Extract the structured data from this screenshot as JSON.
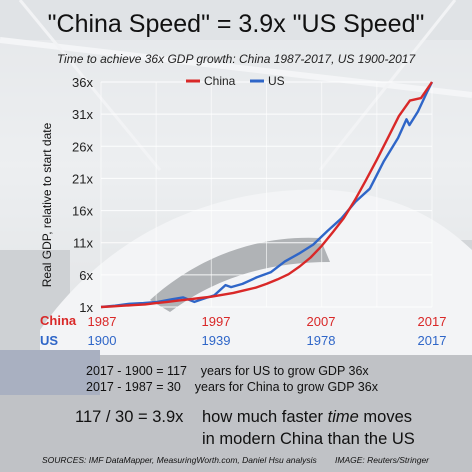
{
  "header": {
    "title": "\"China Speed\" = 3.9x \"US Speed\"",
    "subtitle": "Time to achieve 36x GDP growth: China 1987-2017, US 1900-2017"
  },
  "colors": {
    "china": "#d92828",
    "us": "#2f66c8"
  },
  "chart_data": {
    "type": "line",
    "ylabel": "Real GDP, relative to start date",
    "y_ticks": [
      "1x",
      "6x",
      "11x",
      "16x",
      "21x",
      "26x",
      "31x",
      "36x"
    ],
    "y_tick_values": [
      1,
      6,
      11,
      16,
      21,
      26,
      31,
      36
    ],
    "ylim": [
      1,
      36
    ],
    "grid": true,
    "legend": "top-center",
    "series": [
      {
        "name": "China",
        "years": [
          1987,
          1988,
          1989,
          1990,
          1991,
          1992,
          1993,
          1994,
          1995,
          1996,
          1997,
          1998,
          1999,
          2000,
          2001,
          2002,
          2003,
          2004,
          2005,
          2006,
          2007,
          2008,
          2009,
          2010,
          2011,
          2012,
          2013,
          2014,
          2015,
          2016,
          2017
        ],
        "values": [
          1.0,
          1.1,
          1.2,
          1.3,
          1.4,
          1.6,
          1.8,
          2.0,
          2.2,
          2.4,
          2.6,
          2.9,
          3.2,
          3.6,
          4.0,
          4.6,
          5.3,
          6.1,
          7.3,
          8.7,
          10.5,
          12.6,
          14.8,
          17.6,
          20.7,
          23.9,
          27.3,
          30.7,
          33.1,
          33.5,
          36.0
        ]
      },
      {
        "name": "US",
        "years": [
          1900,
          1905,
          1910,
          1915,
          1920,
          1925,
          1929,
          1933,
          1937,
          1940,
          1944,
          1946,
          1950,
          1955,
          1960,
          1965,
          1970,
          1975,
          1980,
          1985,
          1990,
          1995,
          2000,
          2005,
          2008,
          2009,
          2012,
          2015,
          2017
        ],
        "values": [
          1.0,
          1.2,
          1.5,
          1.6,
          1.8,
          2.2,
          2.5,
          1.8,
          2.4,
          2.8,
          4.4,
          4.1,
          4.6,
          5.6,
          6.4,
          8.1,
          9.3,
          10.7,
          12.8,
          14.8,
          17.4,
          19.4,
          23.7,
          27.3,
          30.2,
          29.3,
          31.4,
          34.2,
          36.0
        ]
      }
    ],
    "china_axis_labels": [
      "1987",
      "1997",
      "2007",
      "2017"
    ],
    "us_axis_labels": [
      "1900",
      "1939",
      "1978",
      "2017"
    ]
  },
  "axis_rows": {
    "china_label": "China",
    "us_label": "US"
  },
  "stats": {
    "line1": "2017 - 1900 = 117    years for US to grow GDP 36x",
    "line2": "2017 - 1987 = 30    years for China to grow GDP 36x"
  },
  "conclusion": {
    "ratio": "117 / 30 = 3.9x",
    "text_before": "how much faster ",
    "text_italic": "time",
    "text_after": " moves",
    "line2": "in modern China than the US"
  },
  "footer": {
    "sources": "SOURCES: IMF DataMapper, MeasuringWorth.com, Daniel Hsu analysis",
    "image": "IMAGE: Reuters/Stringer"
  }
}
